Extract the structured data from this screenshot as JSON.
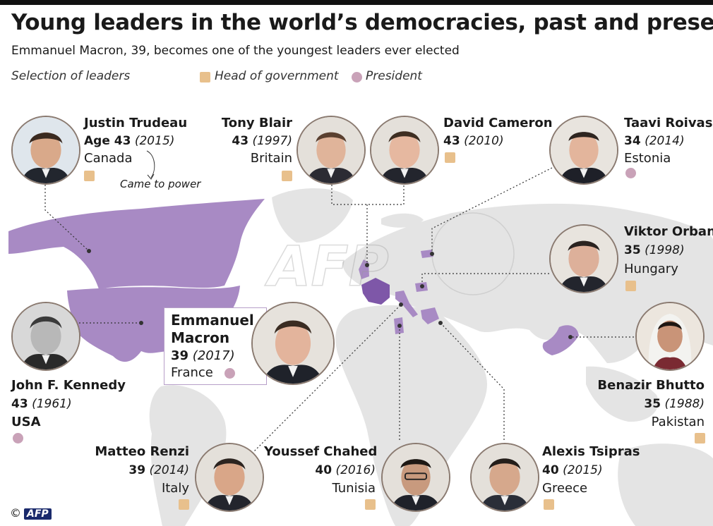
{
  "title": "Young leaders in the world’s democracies, past and present",
  "subtitle": "Emmanuel Macron, 39, becomes one of the youngest leaders ever elected",
  "legend": {
    "selection_label": "Selection of leaders",
    "head_of_government_label": "Head of government",
    "president_label": "President"
  },
  "annotation": "Came to power",
  "credit": {
    "copyright": "©",
    "agency": "AFP"
  },
  "watermark": "AFP",
  "colors": {
    "highlight": "#a88ac4",
    "featured": "#7e57a8",
    "map_land": "#e4e4e4",
    "head_of_government": "#e8c08c",
    "president": "#c9a2b8"
  },
  "leaders": {
    "trudeau": {
      "name": "Justin Trudeau",
      "age_prefix": "Age ",
      "age": "43",
      "year": "(2015)",
      "country": "Canada",
      "role": "head-of-government"
    },
    "blair": {
      "name": "Tony Blair",
      "age": "43",
      "year": "(1997)",
      "country": "Britain",
      "role": "head-of-government"
    },
    "cameron": {
      "name": "David Cameron",
      "age": "43",
      "year": "(2010)",
      "country": "",
      "role": "head-of-government"
    },
    "roivas": {
      "name": "Taavi Roivas",
      "age": "34",
      "year": "(2014)",
      "country": "Estonia",
      "role": "president-marker"
    },
    "orban": {
      "name": "Viktor Orban",
      "age": "35",
      "year": "(1998)",
      "country": "Hungary",
      "role": "head-of-government"
    },
    "macron": {
      "name_line1": "Emmanuel",
      "name_line2": "Macron",
      "age": "39",
      "year": "(2017)",
      "country": "France",
      "role": "president"
    },
    "kennedy": {
      "name": "John F. Kennedy",
      "age": "43",
      "year": "(1961)",
      "country": "USA",
      "role": "president"
    },
    "bhutto": {
      "name": "Benazir Bhutto",
      "age": "35",
      "year": "(1988)",
      "country": "Pakistan",
      "role": "head-of-government"
    },
    "renzi": {
      "name": "Matteo Renzi",
      "age": "39",
      "year": "(2014)",
      "country": "Italy",
      "role": "head-of-government"
    },
    "chahed": {
      "name": "Youssef Chahed",
      "age": "40",
      "year": "(2016)",
      "country": "Tunisia",
      "role": "head-of-government"
    },
    "tsipras": {
      "name": "Alexis Tsipras",
      "age": "40",
      "year": "(2015)",
      "country": "Greece",
      "role": "head-of-government"
    }
  }
}
